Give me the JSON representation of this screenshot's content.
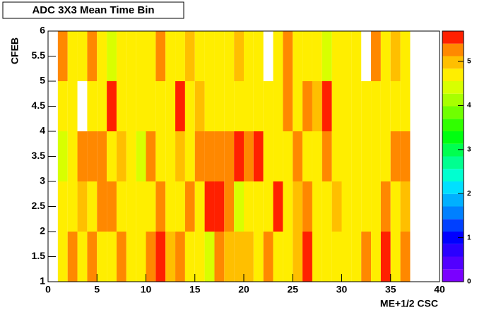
{
  "chart_data": {
    "type": "heatmap",
    "title": "ADC 3X3 Mean Time Bin",
    "x_label": "ME+1/2 CSC",
    "y_label": "CFEB",
    "x_edges": [
      1,
      2,
      3,
      4,
      5,
      6,
      7,
      8,
      9,
      10,
      11,
      12,
      13,
      14,
      15,
      16,
      17,
      18,
      19,
      20,
      21,
      22,
      23,
      24,
      25,
      26,
      27,
      28,
      29,
      30,
      31,
      32,
      33,
      34,
      35,
      36,
      37
    ],
    "y_edges": [
      1,
      2,
      3,
      4,
      5,
      6
    ],
    "values": [
      [
        4.7,
        5.2,
        4.7,
        5.2,
        4.7,
        4.7,
        5.2,
        4.7,
        4.7,
        5.2,
        5.5,
        5.0,
        5.2,
        4.7,
        4.7,
        4.3,
        5.2,
        5.0,
        5.0,
        5.0,
        4.7,
        5.2,
        4.7,
        4.7,
        5.0,
        5.5,
        4.7,
        4.7,
        4.7,
        4.7,
        4.7,
        5.2,
        4.7,
        5.5,
        4.7,
        5.2
      ],
      [
        4.7,
        4.7,
        5.0,
        4.7,
        5.2,
        5.2,
        4.7,
        4.7,
        4.7,
        4.7,
        5.2,
        4.7,
        4.7,
        5.2,
        4.7,
        5.5,
        5.5,
        5.2,
        4.3,
        4.7,
        4.7,
        4.7,
        5.5,
        4.7,
        5.0,
        5.2,
        4.7,
        4.7,
        5.0,
        4.7,
        4.7,
        4.7,
        4.7,
        5.2,
        4.7,
        5.0
      ],
      [
        4.3,
        4.7,
        5.2,
        5.2,
        5.2,
        4.7,
        5.0,
        4.7,
        4.3,
        5.2,
        4.7,
        4.7,
        5.0,
        4.7,
        5.2,
        5.2,
        5.2,
        5.2,
        5.5,
        5.2,
        5.5,
        4.7,
        4.7,
        4.7,
        5.2,
        4.7,
        4.7,
        5.2,
        4.7,
        4.7,
        4.7,
        4.7,
        4.7,
        4.7,
        5.2,
        5.2
      ],
      [
        4.7,
        4.7,
        null,
        4.7,
        4.7,
        5.5,
        4.7,
        4.7,
        4.7,
        4.7,
        4.7,
        4.7,
        5.5,
        4.7,
        5.0,
        4.7,
        4.7,
        4.7,
        4.7,
        4.7,
        4.7,
        4.7,
        4.7,
        5.2,
        4.7,
        5.2,
        5.0,
        5.5,
        4.7,
        4.7,
        4.7,
        4.7,
        4.7,
        4.7,
        4.7,
        4.7
      ],
      [
        5.2,
        4.7,
        4.7,
        5.2,
        4.7,
        4.3,
        4.7,
        4.7,
        4.7,
        4.7,
        5.2,
        4.7,
        4.7,
        5.0,
        4.7,
        4.7,
        4.7,
        4.7,
        5.0,
        4.7,
        4.7,
        null,
        4.7,
        5.2,
        4.7,
        4.7,
        4.7,
        4.3,
        4.7,
        4.7,
        4.7,
        null,
        5.2,
        4.7,
        5.0,
        4.7
      ]
    ],
    "xlim": [
      0,
      40
    ],
    "xticks": [
      0,
      5,
      10,
      15,
      20,
      25,
      30,
      35,
      40
    ],
    "ylim": [
      1,
      6
    ],
    "yticks": [
      1,
      1.5,
      2,
      2.5,
      3,
      3.5,
      4,
      4.5,
      5,
      5.5,
      6
    ],
    "zlim": [
      0,
      5.69
    ],
    "zticks": [
      0,
      1,
      2,
      3,
      4,
      5
    ],
    "palette": [
      "#7a00ff",
      "#5200ff",
      "#2a00ff",
      "#0000ff",
      "#0040ff",
      "#0080ff",
      "#00b0ff",
      "#00e0ff",
      "#00ffd0",
      "#00ff90",
      "#00ff50",
      "#00ff10",
      "#30ff00",
      "#70ff00",
      "#a8ff00",
      "#d8ff00",
      "#ffee00",
      "#ffbf00",
      "#ff8800",
      "#ff2000"
    ]
  }
}
